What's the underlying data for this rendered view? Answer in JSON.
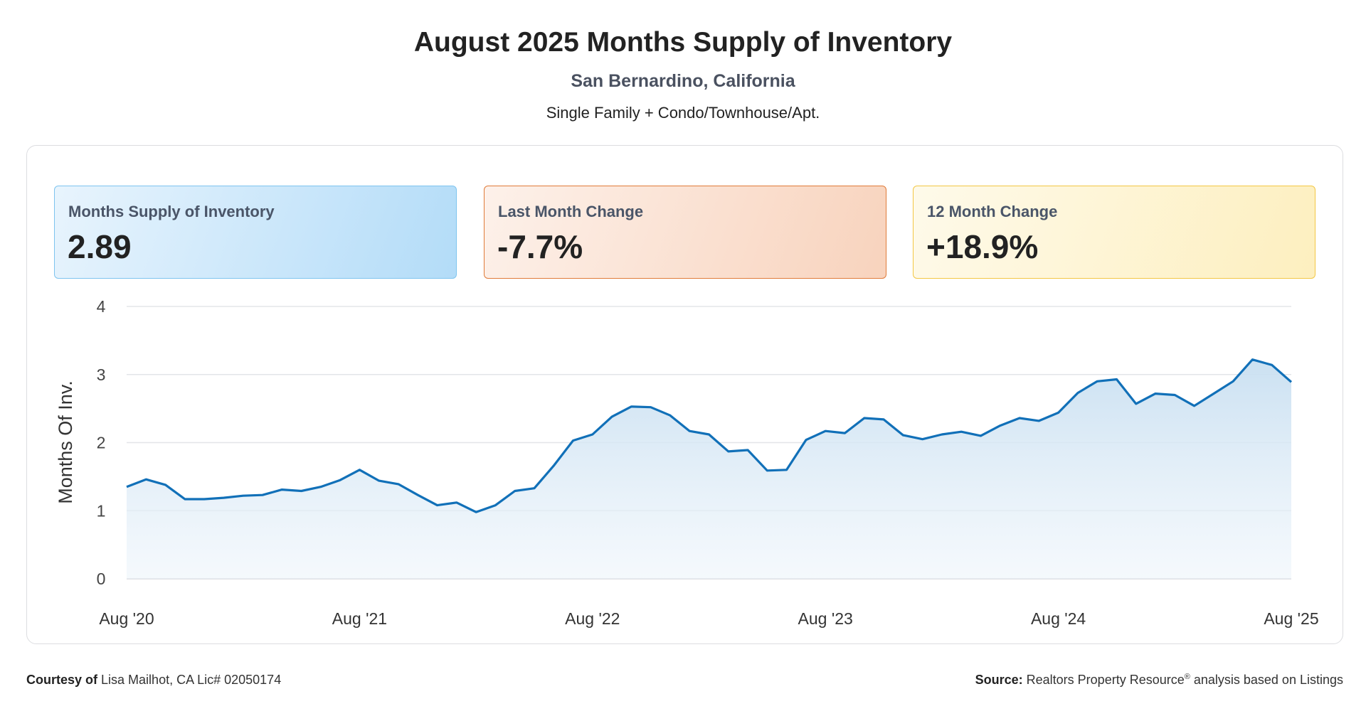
{
  "header": {
    "title": "August 2025 Months Supply of Inventory",
    "subtitle": "San Bernardino, California",
    "segment": "Single Family + Condo/Townhouse/Apt."
  },
  "kpis": [
    {
      "label": "Months Supply of Inventory",
      "value": "2.89",
      "color": "#b3dcf8"
    },
    {
      "label": "Last Month Change",
      "value": "-7.7%",
      "color": "#f8d3bd"
    },
    {
      "label": "12 Month Change",
      "value": "+18.9%",
      "color": "#fdefbf"
    }
  ],
  "footer": {
    "courtesy_label": "Courtesy of",
    "courtesy_text": "Lisa Mailhot, CA Lic# 02050174",
    "source_label": "Source:",
    "source_text": "Realtors Property Resource",
    "source_reg": "®",
    "source_suffix": "analysis based on Listings"
  },
  "chart_data": {
    "type": "area",
    "ylabel": "Months Of Inv.",
    "ylim": [
      0,
      4
    ],
    "yticks": [
      "0",
      "1",
      "2",
      "3",
      "4"
    ],
    "xtick_labels": [
      "Aug '20",
      "Aug '21",
      "Aug '22",
      "Aug '23",
      "Aug '24",
      "Aug '25"
    ],
    "grid": true,
    "line_color": "#1170b8",
    "fill_color": "#cfe3f3",
    "x": [
      "2020-08",
      "2020-09",
      "2020-10",
      "2020-11",
      "2020-12",
      "2021-01",
      "2021-02",
      "2021-03",
      "2021-04",
      "2021-05",
      "2021-06",
      "2021-07",
      "2021-08",
      "2021-09",
      "2021-10",
      "2021-11",
      "2021-12",
      "2022-01",
      "2022-02",
      "2022-03",
      "2022-04",
      "2022-05",
      "2022-06",
      "2022-07",
      "2022-08",
      "2022-09",
      "2022-10",
      "2022-11",
      "2022-12",
      "2023-01",
      "2023-02",
      "2023-03",
      "2023-04",
      "2023-05",
      "2023-06",
      "2023-07",
      "2023-08",
      "2023-09",
      "2023-10",
      "2023-11",
      "2023-12",
      "2024-01",
      "2024-02",
      "2024-03",
      "2024-04",
      "2024-05",
      "2024-06",
      "2024-07",
      "2024-08",
      "2024-09",
      "2024-10",
      "2024-11",
      "2024-12",
      "2025-01",
      "2025-02",
      "2025-03",
      "2025-04",
      "2025-05",
      "2025-06",
      "2025-07",
      "2025-08"
    ],
    "values": [
      1.35,
      1.46,
      1.38,
      1.17,
      1.17,
      1.19,
      1.22,
      1.23,
      1.31,
      1.29,
      1.35,
      1.45,
      1.6,
      1.44,
      1.39,
      1.23,
      1.08,
      1.12,
      0.98,
      1.08,
      1.29,
      1.33,
      1.66,
      2.03,
      2.12,
      2.38,
      2.53,
      2.52,
      2.4,
      2.17,
      2.12,
      1.87,
      1.89,
      1.59,
      1.6,
      2.04,
      2.17,
      2.14,
      2.36,
      2.34,
      2.11,
      2.05,
      2.12,
      2.16,
      2.1,
      2.25,
      2.36,
      2.32,
      2.44,
      2.73,
      2.9,
      2.93,
      2.57,
      2.72,
      2.7,
      2.54,
      2.72,
      2.9,
      3.22,
      3.14,
      2.89
    ]
  }
}
